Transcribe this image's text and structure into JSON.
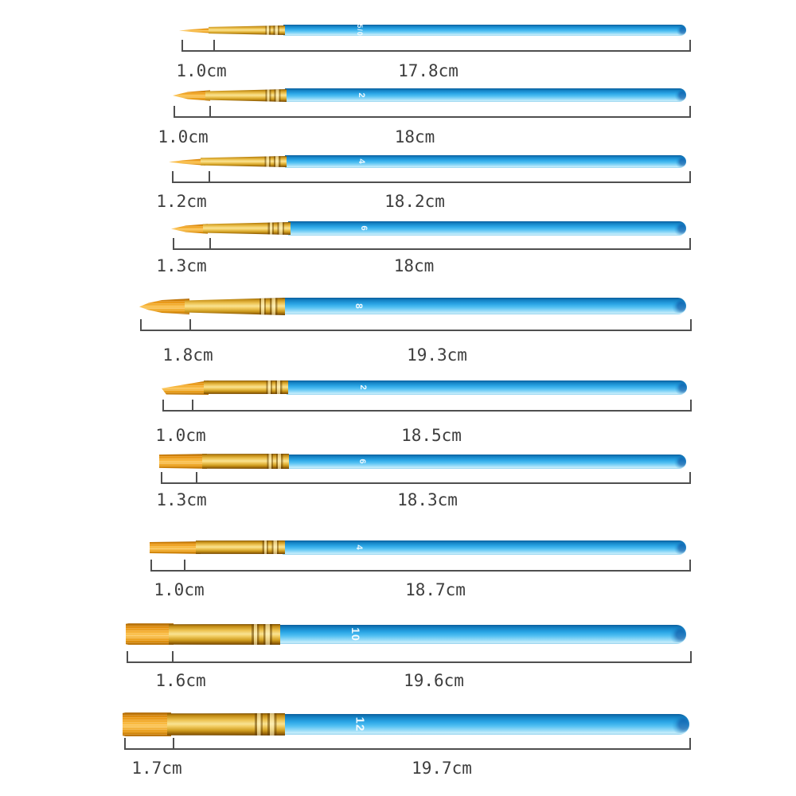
{
  "figure_type": "paint-brush-set-size-chart",
  "colors": {
    "background": "#FFFFFF",
    "handle_blue": "#2BA6E6",
    "handle_blue_dark": "#0B5E9D",
    "handle_blue_light": "#C8EEFB",
    "ferrule_gold": "#E8B93E",
    "bristle_gold": "#F0A21A",
    "ruler_line": "#4F4F4F",
    "label_text": "#3E3E3E",
    "size_number_text": "#FFFFFF"
  },
  "brushes": [
    {
      "size": "5/0",
      "type": "round-liner",
      "tip_width": "1.0cm",
      "length": "17.8cm"
    },
    {
      "size": "2",
      "type": "round",
      "tip_width": "1.0cm",
      "length": "18cm"
    },
    {
      "size": "4",
      "type": "round-liner",
      "tip_width": "1.2cm",
      "length": "18.2cm"
    },
    {
      "size": "6",
      "type": "round",
      "tip_width": "1.3cm",
      "length": "18cm"
    },
    {
      "size": "8",
      "type": "round",
      "tip_width": "1.8cm",
      "length": "19.3cm"
    },
    {
      "size": "2",
      "type": "angled",
      "tip_width": "1.0cm",
      "length": "18.5cm"
    },
    {
      "size": "6",
      "type": "flat",
      "tip_width": "1.3cm",
      "length": "18.3cm"
    },
    {
      "size": "4",
      "type": "flat",
      "tip_width": "1.0cm",
      "length": "18.7cm"
    },
    {
      "size": "10",
      "type": "flat",
      "tip_width": "1.6cm",
      "length": "19.6cm"
    },
    {
      "size": "12",
      "type": "flat",
      "tip_width": "1.7cm",
      "length": "19.7cm"
    }
  ]
}
